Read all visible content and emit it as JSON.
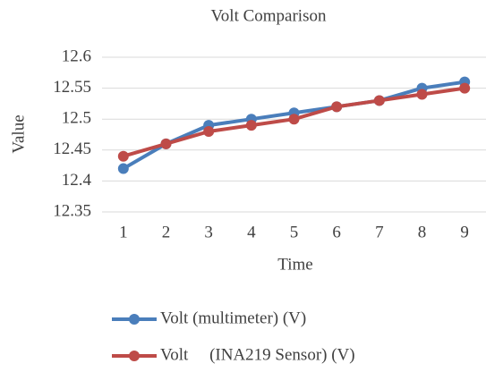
{
  "chart_data": {
    "type": "line",
    "title": "Volt Comparison",
    "x_label": "Time",
    "y_label": "Value",
    "categories": [
      "1",
      "2",
      "3",
      "4",
      "5",
      "6",
      "7",
      "8",
      "9"
    ],
    "series": [
      {
        "name": "Volt (multimeter) (V)",
        "color": "#4a7ebb",
        "values": [
          12.42,
          12.46,
          12.49,
          12.5,
          12.51,
          12.52,
          12.53,
          12.55,
          12.56
        ]
      },
      {
        "name": "Volt     (INA219 Sensor) (V)",
        "color": "#be4b48",
        "values": [
          12.44,
          12.46,
          12.48,
          12.49,
          12.5,
          12.52,
          12.53,
          12.54,
          12.55
        ]
      }
    ],
    "ylim": [
      12.35,
      12.6
    ],
    "yticks": [
      12.35,
      12.4,
      12.45,
      12.5,
      12.55,
      12.6
    ],
    "grid": true,
    "legend": "bottom"
  }
}
